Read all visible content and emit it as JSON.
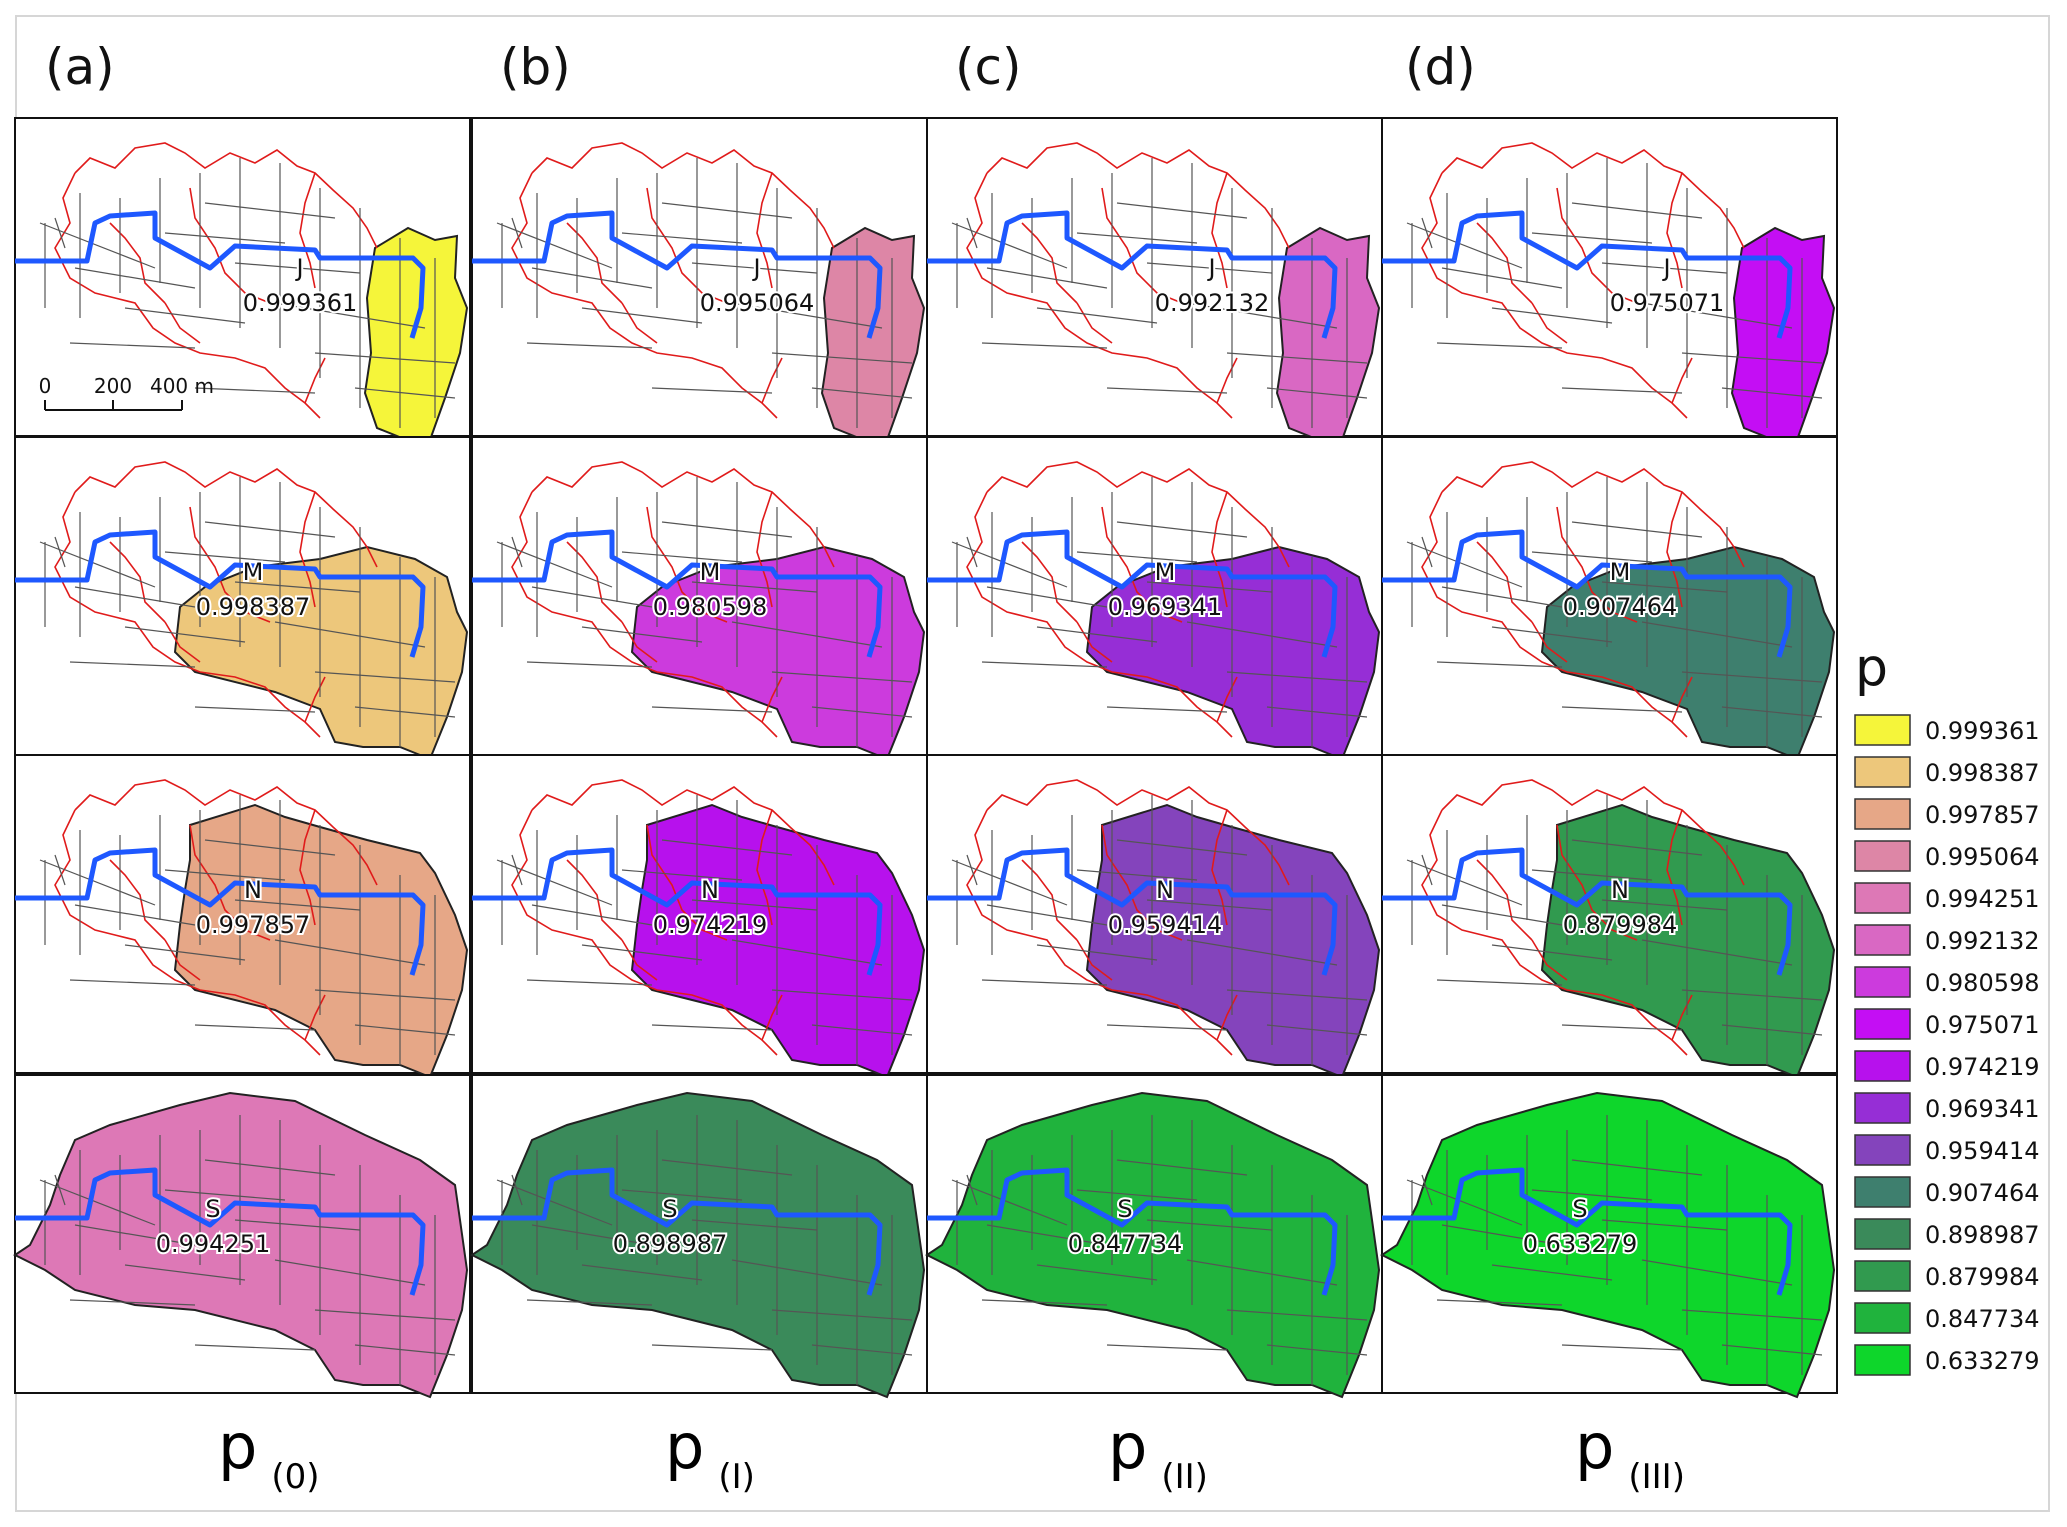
{
  "panel_letters": [
    "(a)",
    "(b)",
    "(c)",
    "(d)"
  ],
  "column_titles": [
    {
      "base": "p",
      "sub": "(0)"
    },
    {
      "base": "p",
      "sub": "(I)"
    },
    {
      "base": "p",
      "sub": "(II)"
    },
    {
      "base": "p",
      "sub": "(III)"
    }
  ],
  "rows": [
    {
      "zone": "J",
      "values": [
        "0.999361",
        "0.995064",
        "0.992132",
        "0.975071"
      ]
    },
    {
      "zone": "M",
      "values": [
        "0.998387",
        "0.980598",
        "0.969341",
        "0.907464"
      ]
    },
    {
      "zone": "N",
      "values": [
        "0.997857",
        "0.974219",
        "0.959414",
        "0.879984"
      ]
    },
    {
      "zone": "S",
      "values": [
        "0.994251",
        "0.898987",
        "0.847734",
        "0.633279"
      ]
    }
  ],
  "scale_bar": {
    "ticks": [
      "0",
      "200",
      "400 m"
    ]
  },
  "legend": {
    "title": "p",
    "items": [
      {
        "label": "0.999361",
        "color": "#f5f53a"
      },
      {
        "label": "0.998387",
        "color": "#edc77b"
      },
      {
        "label": "0.997857",
        "color": "#e6a787"
      },
      {
        "label": "0.995064",
        "color": "#dd86a6"
      },
      {
        "label": "0.994251",
        "color": "#dd78b6"
      },
      {
        "label": "0.992132",
        "color": "#d968c3"
      },
      {
        "label": "0.980598",
        "color": "#cc3bdd"
      },
      {
        "label": "0.975071",
        "color": "#c40ef4"
      },
      {
        "label": "0.974219",
        "color": "#b711ed"
      },
      {
        "label": "0.969341",
        "color": "#962ed6"
      },
      {
        "label": "0.959414",
        "color": "#8444bc"
      },
      {
        "label": "0.907464",
        "color": "#3e7f6e"
      },
      {
        "label": "0.898987",
        "color": "#3a8a5a"
      },
      {
        "label": "0.879984",
        "color": "#319a4f"
      },
      {
        "label": "0.847734",
        "color": "#20b33d"
      },
      {
        "label": "0.633279",
        "color": "#0ed62b"
      }
    ]
  },
  "colors": {
    "pipe": "#1e58ff",
    "boundary": "#e01b1b",
    "network": "#555555"
  }
}
